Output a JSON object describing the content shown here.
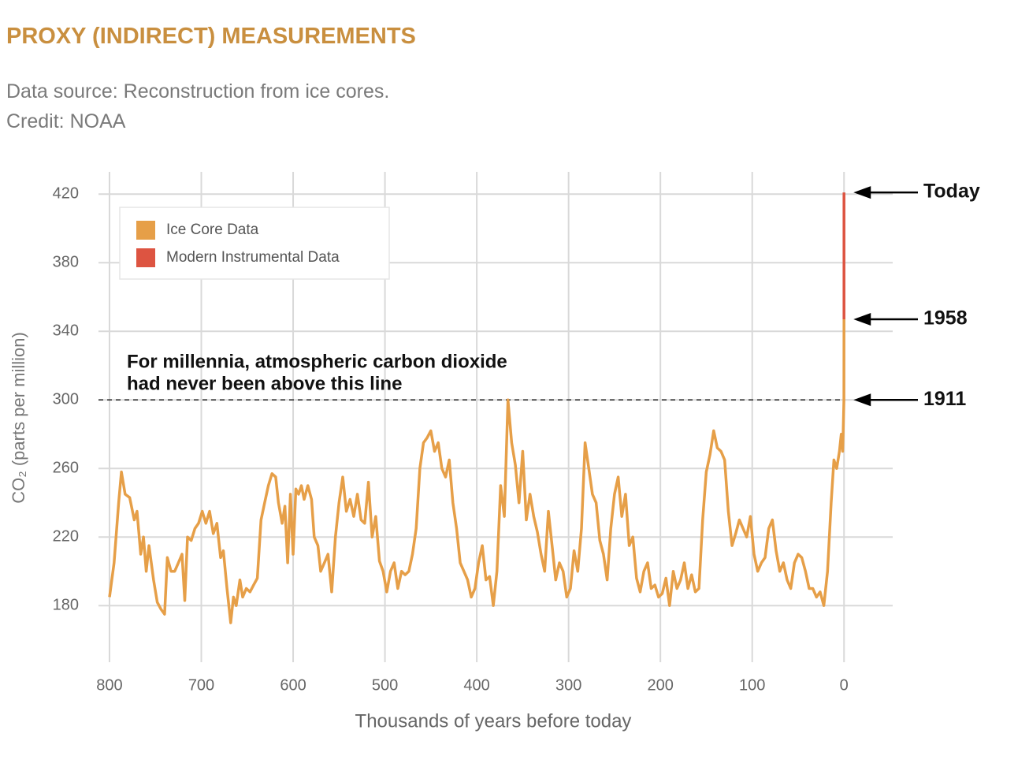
{
  "header": {
    "title": "PROXY (INDIRECT) MEASUREMENTS",
    "source": "Data source: Reconstruction from ice cores.",
    "credit": "Credit: NOAA"
  },
  "chart_data": {
    "type": "line",
    "xlabel": "Thousands of years before today",
    "ylabel": "CO₂ (parts per million)",
    "xlim": [
      812,
      -53
    ],
    "xticks": [
      800,
      700,
      600,
      500,
      400,
      300,
      200,
      100,
      0
    ],
    "ylim": [
      147,
      433
    ],
    "yticks": [
      180,
      220,
      260,
      300,
      340,
      380,
      420
    ],
    "grid": true,
    "legend": "top-left",
    "series": [
      {
        "name": "Ice Core Data",
        "color": "#e69f48",
        "x": [
          800,
          795,
          790,
          787,
          783,
          778,
          773,
          770,
          766,
          763,
          760,
          757,
          752,
          748,
          744,
          740,
          737,
          733,
          729,
          725,
          721,
          718,
          715,
          711,
          707,
          703,
          699,
          695,
          691,
          687,
          683,
          679,
          676,
          672,
          668,
          665,
          662,
          658,
          655,
          651,
          647,
          643,
          639,
          635,
          631,
          627,
          623,
          619,
          616,
          612,
          609,
          606,
          603,
          600,
          597,
          594,
          591,
          588,
          584,
          580,
          577,
          573,
          570,
          566,
          562,
          558,
          554,
          550,
          546,
          542,
          538,
          534,
          530,
          526,
          522,
          518,
          514,
          510,
          506,
          502,
          498,
          494,
          490,
          486,
          482,
          478,
          474,
          470,
          466,
          462,
          458,
          454,
          450,
          446,
          442,
          438,
          434,
          430,
          426,
          422,
          418,
          414,
          410,
          406,
          402,
          398,
          394,
          390,
          386,
          382,
          378,
          374,
          370,
          366,
          362,
          358,
          354,
          350,
          346,
          342,
          338,
          334,
          330,
          326,
          322,
          318,
          314,
          310,
          306,
          302,
          298,
          294,
          290,
          286,
          282,
          278,
          274,
          270,
          266,
          262,
          258,
          254,
          250,
          246,
          242,
          238,
          234,
          230,
          226,
          222,
          218,
          214,
          210,
          206,
          202,
          198,
          194,
          190,
          186,
          182,
          178,
          174,
          170,
          166,
          162,
          158,
          154,
          150,
          146,
          142,
          138,
          134,
          130,
          126,
          122,
          118,
          114,
          110,
          106,
          102,
          98,
          94,
          90,
          86,
          82,
          78,
          74,
          70,
          66,
          62,
          58,
          54,
          50,
          46,
          42,
          38,
          34,
          30,
          26,
          22,
          18,
          14,
          11,
          8,
          5,
          3,
          1.5,
          1,
          0.1,
          0.05
        ],
        "values": [
          185,
          205,
          240,
          258,
          245,
          243,
          230,
          235,
          210,
          220,
          200,
          215,
          195,
          182,
          178,
          175,
          208,
          200,
          200,
          205,
          210,
          183,
          220,
          218,
          225,
          228,
          235,
          228,
          235,
          222,
          228,
          208,
          212,
          190,
          170,
          185,
          180,
          195,
          185,
          190,
          188,
          192,
          196,
          230,
          240,
          250,
          257,
          255,
          240,
          228,
          238,
          205,
          245,
          210,
          248,
          245,
          250,
          242,
          250,
          242,
          220,
          215,
          200,
          205,
          210,
          188,
          220,
          240,
          255,
          235,
          242,
          232,
          245,
          230,
          228,
          252,
          220,
          232,
          206,
          200,
          188,
          200,
          205,
          190,
          200,
          198,
          200,
          210,
          225,
          260,
          275,
          278,
          282,
          270,
          275,
          260,
          255,
          265,
          240,
          225,
          205,
          200,
          195,
          185,
          190,
          205,
          215,
          195,
          197,
          180,
          200,
          250,
          232,
          300,
          275,
          262,
          240,
          270,
          230,
          245,
          232,
          223,
          210,
          200,
          235,
          215,
          195,
          205,
          200,
          185,
          190,
          212,
          200,
          225,
          275,
          260,
          245,
          240,
          218,
          210,
          195,
          225,
          245,
          255,
          232,
          245,
          215,
          220,
          196,
          188,
          200,
          205,
          190,
          192,
          185,
          187,
          196,
          180,
          200,
          190,
          195,
          205,
          190,
          198,
          188,
          190,
          230,
          258,
          268,
          282,
          272,
          270,
          265,
          235,
          215,
          222,
          230,
          225,
          220,
          232,
          210,
          200,
          205,
          208,
          225,
          230,
          212,
          200,
          205,
          195,
          190,
          205,
          210,
          208,
          200,
          190,
          190,
          185,
          188,
          180,
          200,
          240,
          265,
          260,
          270,
          280,
          270,
          280,
          300,
          347
        ]
      },
      {
        "name": "Modern Instrumental Data",
        "color": "#dd5441",
        "x": [
          0,
          0
        ],
        "values": [
          347,
          421
        ]
      }
    ],
    "reference_line": {
      "value": 300,
      "label_lines": [
        "For millennia, atmospheric carbon dioxide",
        "had never been above this line"
      ]
    },
    "annotations": [
      {
        "label": "Today",
        "value": 421
      },
      {
        "label": "1958",
        "value": 347
      },
      {
        "label": "1911",
        "value": 300
      }
    ]
  }
}
